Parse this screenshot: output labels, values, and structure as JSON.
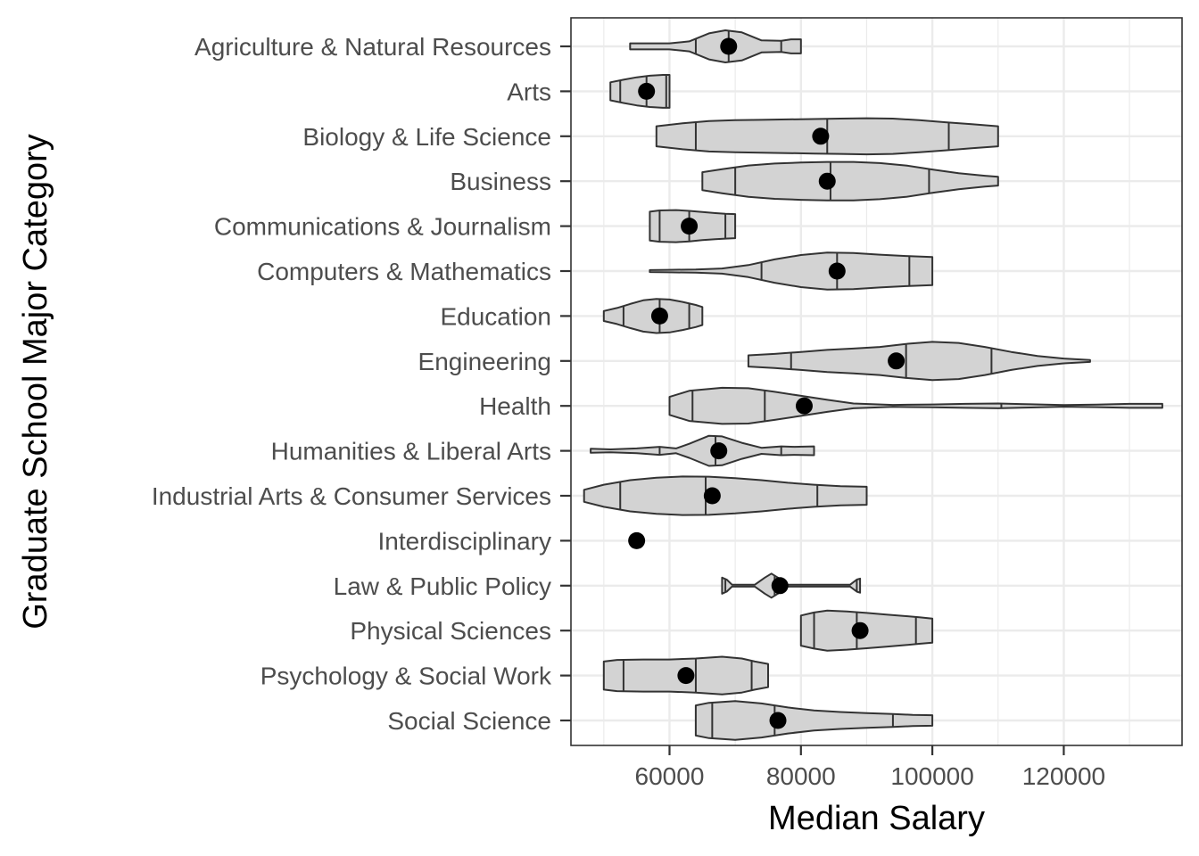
{
  "chart_data": {
    "type": "violin",
    "title": "",
    "xlabel": "Median Salary",
    "ylabel": "Graduate School Major Category",
    "xlim": [
      45000,
      138000
    ],
    "x_ticks": [
      60000,
      80000,
      100000,
      120000
    ],
    "x_tick_labels": [
      "60000",
      "80000",
      "100000",
      "120000"
    ],
    "grid": true,
    "colors": {
      "violin_fill": "#d3d3d3",
      "violin_stroke": "#333333",
      "mean_point": "#000000",
      "grid": "#ebebeb",
      "panel_border": "#333333"
    },
    "categories": [
      {
        "name": "Social Science",
        "min": 64000,
        "max": 100000,
        "quantiles": [
          66500,
          76000,
          94000
        ],
        "mean": 76500,
        "density": [
          [
            64000,
            0.75
          ],
          [
            66000,
            0.88
          ],
          [
            70000,
            0.97
          ],
          [
            74000,
            0.85
          ],
          [
            78000,
            0.65
          ],
          [
            82000,
            0.5
          ],
          [
            86000,
            0.42
          ],
          [
            90000,
            0.37
          ],
          [
            94000,
            0.32
          ],
          [
            97000,
            0.28
          ],
          [
            100000,
            0.26
          ]
        ]
      },
      {
        "name": "Psychology & Social Work",
        "min": 50000,
        "max": 75000,
        "quantiles": [
          53000,
          64000,
          72500
        ],
        "mean": 62500,
        "density": [
          [
            50000,
            0.7
          ],
          [
            52000,
            0.78
          ],
          [
            56000,
            0.8
          ],
          [
            60000,
            0.8
          ],
          [
            64000,
            0.85
          ],
          [
            68000,
            0.94
          ],
          [
            71000,
            0.85
          ],
          [
            73000,
            0.7
          ],
          [
            75000,
            0.58
          ]
        ]
      },
      {
        "name": "Physical Sciences",
        "min": 80000,
        "max": 100000,
        "quantiles": [
          82000,
          88500,
          97500
        ],
        "mean": 89000,
        "density": [
          [
            80000,
            0.75
          ],
          [
            82000,
            0.9
          ],
          [
            84000,
            1.0
          ],
          [
            87000,
            0.95
          ],
          [
            90000,
            0.88
          ],
          [
            93000,
            0.8
          ],
          [
            96000,
            0.72
          ],
          [
            98000,
            0.66
          ],
          [
            100000,
            0.6
          ]
        ]
      },
      {
        "name": "Law & Public Policy",
        "min": 68000,
        "max": 89000,
        "quantiles": [
          68500,
          76000,
          88500
        ],
        "mean": 76800,
        "density": [
          [
            68000,
            0.4
          ],
          [
            68700,
            0.3
          ],
          [
            69500,
            0.05
          ],
          [
            73000,
            0.05
          ],
          [
            74500,
            0.4
          ],
          [
            75500,
            0.6
          ],
          [
            76500,
            0.4
          ],
          [
            78000,
            0.05
          ],
          [
            87500,
            0.05
          ],
          [
            88500,
            0.3
          ],
          [
            89000,
            0.35
          ]
        ]
      },
      {
        "name": "Interdisciplinary",
        "min": 55000,
        "max": 55000,
        "quantiles": [],
        "mean": 55000,
        "density": []
      },
      {
        "name": "Industrial Arts & Consumer Services",
        "min": 47000,
        "max": 90000,
        "quantiles": [
          52500,
          65500,
          82500
        ],
        "mean": 66500,
        "density": [
          [
            47000,
            0.3
          ],
          [
            50000,
            0.55
          ],
          [
            54000,
            0.78
          ],
          [
            58000,
            0.9
          ],
          [
            62000,
            0.96
          ],
          [
            66000,
            0.95
          ],
          [
            70000,
            0.88
          ],
          [
            74000,
            0.78
          ],
          [
            78000,
            0.65
          ],
          [
            82000,
            0.55
          ],
          [
            86000,
            0.48
          ],
          [
            90000,
            0.45
          ]
        ]
      },
      {
        "name": "Humanities & Liberal Arts",
        "min": 48000,
        "max": 82000,
        "quantiles": [
          58500,
          67000,
          77000
        ],
        "mean": 67500,
        "density": [
          [
            48000,
            0.1
          ],
          [
            51000,
            0.07
          ],
          [
            55000,
            0.12
          ],
          [
            58500,
            0.2
          ],
          [
            61000,
            0.12
          ],
          [
            63000,
            0.35
          ],
          [
            66000,
            0.75
          ],
          [
            68000,
            0.72
          ],
          [
            71000,
            0.4
          ],
          [
            74000,
            0.15
          ],
          [
            77000,
            0.22
          ],
          [
            79000,
            0.2
          ],
          [
            82000,
            0.22
          ]
        ]
      },
      {
        "name": "Health",
        "min": 60000,
        "max": 135000,
        "quantiles": [
          63500,
          74500,
          110500
        ],
        "mean": 80500,
        "density": [
          [
            60000,
            0.45
          ],
          [
            63000,
            0.75
          ],
          [
            68000,
            0.9
          ],
          [
            72000,
            0.88
          ],
          [
            76000,
            0.7
          ],
          [
            80000,
            0.5
          ],
          [
            84000,
            0.3
          ],
          [
            88000,
            0.12
          ],
          [
            94000,
            0.05
          ],
          [
            100000,
            0.07
          ],
          [
            105000,
            0.1
          ],
          [
            110000,
            0.12
          ],
          [
            115000,
            0.08
          ],
          [
            120000,
            0.04
          ],
          [
            125000,
            0.06
          ],
          [
            130000,
            0.1
          ],
          [
            135000,
            0.1
          ]
        ]
      },
      {
        "name": "Engineering",
        "min": 72000,
        "max": 124000,
        "quantiles": [
          78500,
          96000,
          109000
        ],
        "mean": 94500,
        "density": [
          [
            72000,
            0.28
          ],
          [
            76000,
            0.35
          ],
          [
            80000,
            0.45
          ],
          [
            84000,
            0.55
          ],
          [
            88000,
            0.62
          ],
          [
            92000,
            0.7
          ],
          [
            96000,
            0.85
          ],
          [
            100000,
            0.95
          ],
          [
            104000,
            0.9
          ],
          [
            108000,
            0.7
          ],
          [
            112000,
            0.45
          ],
          [
            116000,
            0.25
          ],
          [
            120000,
            0.12
          ],
          [
            124000,
            0.05
          ]
        ]
      },
      {
        "name": "Education",
        "min": 50000,
        "max": 65000,
        "quantiles": [
          53000,
          58500,
          63000
        ],
        "mean": 58500,
        "density": [
          [
            50000,
            0.25
          ],
          [
            52000,
            0.4
          ],
          [
            54000,
            0.6
          ],
          [
            56000,
            0.78
          ],
          [
            58000,
            0.85
          ],
          [
            60000,
            0.82
          ],
          [
            62000,
            0.7
          ],
          [
            64000,
            0.55
          ],
          [
            65000,
            0.45
          ]
        ]
      },
      {
        "name": "Computers & Mathematics",
        "min": 57000,
        "max": 100000,
        "quantiles": [
          74000,
          85500,
          96500
        ],
        "mean": 85500,
        "density": [
          [
            57000,
            0.05
          ],
          [
            60000,
            0.06
          ],
          [
            64000,
            0.08
          ],
          [
            68000,
            0.13
          ],
          [
            72000,
            0.3
          ],
          [
            76000,
            0.58
          ],
          [
            80000,
            0.8
          ],
          [
            84000,
            0.92
          ],
          [
            88000,
            0.9
          ],
          [
            92000,
            0.82
          ],
          [
            96000,
            0.75
          ],
          [
            100000,
            0.7
          ]
        ]
      },
      {
        "name": "Communications & Journalism",
        "min": 57000,
        "max": 70000,
        "quantiles": [
          58500,
          63000,
          68500
        ],
        "mean": 63000,
        "density": [
          [
            57000,
            0.72
          ],
          [
            58500,
            0.78
          ],
          [
            61000,
            0.8
          ],
          [
            63000,
            0.76
          ],
          [
            65000,
            0.7
          ],
          [
            67000,
            0.65
          ],
          [
            68500,
            0.62
          ],
          [
            70000,
            0.6
          ]
        ]
      },
      {
        "name": "Business",
        "min": 65000,
        "max": 110000,
        "quantiles": [
          70000,
          84500,
          99500
        ],
        "mean": 84000,
        "density": [
          [
            65000,
            0.45
          ],
          [
            68000,
            0.6
          ],
          [
            72000,
            0.78
          ],
          [
            76000,
            0.88
          ],
          [
            80000,
            0.93
          ],
          [
            84000,
            0.96
          ],
          [
            88000,
            0.96
          ],
          [
            92000,
            0.9
          ],
          [
            96000,
            0.78
          ],
          [
            100000,
            0.58
          ],
          [
            104000,
            0.4
          ],
          [
            108000,
            0.27
          ],
          [
            110000,
            0.22
          ]
        ]
      },
      {
        "name": "Biology & Life Science",
        "min": 58000,
        "max": 110000,
        "quantiles": [
          64000,
          84000,
          102500
        ],
        "mean": 83000,
        "density": [
          [
            58000,
            0.5
          ],
          [
            62000,
            0.65
          ],
          [
            66000,
            0.76
          ],
          [
            70000,
            0.8
          ],
          [
            74000,
            0.82
          ],
          [
            78000,
            0.84
          ],
          [
            82000,
            0.86
          ],
          [
            86000,
            0.88
          ],
          [
            90000,
            0.9
          ],
          [
            94000,
            0.88
          ],
          [
            98000,
            0.8
          ],
          [
            102000,
            0.7
          ],
          [
            106000,
            0.6
          ],
          [
            110000,
            0.5
          ]
        ]
      },
      {
        "name": "Arts",
        "min": 51000,
        "max": 60000,
        "quantiles": [
          52500,
          56500,
          59500
        ],
        "mean": 56500,
        "density": [
          [
            51000,
            0.45
          ],
          [
            53000,
            0.58
          ],
          [
            55000,
            0.7
          ],
          [
            57000,
            0.78
          ],
          [
            59000,
            0.82
          ],
          [
            60000,
            0.82
          ]
        ]
      },
      {
        "name": "Agriculture & Natural Resources",
        "min": 54000,
        "max": 80000,
        "quantiles": [
          64000,
          69000,
          77000
        ],
        "mean": 69000,
        "density": [
          [
            54000,
            0.15
          ],
          [
            57000,
            0.15
          ],
          [
            60000,
            0.15
          ],
          [
            63000,
            0.25
          ],
          [
            66000,
            0.65
          ],
          [
            68500,
            0.8
          ],
          [
            71000,
            0.7
          ],
          [
            74000,
            0.3
          ],
          [
            77000,
            0.28
          ],
          [
            78500,
            0.35
          ],
          [
            80000,
            0.35
          ]
        ]
      }
    ]
  }
}
